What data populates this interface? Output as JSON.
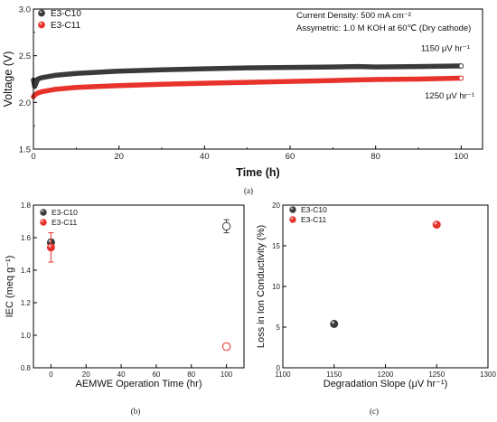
{
  "chart_data": [
    {
      "panel": "(a)",
      "type": "line",
      "xlabel": "Time (h)",
      "ylabel": "Voltage (V)",
      "xlim": [
        0,
        105
      ],
      "ylim": [
        1.5,
        3.0
      ],
      "xticks": [
        0,
        20,
        40,
        60,
        80,
        100
      ],
      "yticks": [
        1.5,
        2.0,
        2.5,
        3.0
      ],
      "legend_position": "top-left",
      "annotations": [
        "Current Density: 500 mA cm⁻²",
        "Assymetric: 1.0 M KOH at 60℃ (Dry cathode)"
      ],
      "series": [
        {
          "name": "E3-C10",
          "color": "#3a3a3a",
          "x": [
            0,
            0.3,
            1,
            2,
            5,
            10,
            20,
            30,
            40,
            50,
            60,
            70,
            76,
            80,
            90,
            100
          ],
          "values": [
            2.24,
            2.17,
            2.25,
            2.265,
            2.29,
            2.31,
            2.335,
            2.35,
            2.36,
            2.37,
            2.375,
            2.38,
            2.385,
            2.38,
            2.385,
            2.39
          ],
          "end_label": "1150 μV hr⁻¹"
        },
        {
          "name": "E3-C11",
          "color": "#e8322c",
          "x": [
            0,
            0.3,
            1,
            2,
            5,
            10,
            20,
            30,
            40,
            50,
            60,
            70,
            80,
            90,
            100
          ],
          "values": [
            2.06,
            2.08,
            2.1,
            2.115,
            2.14,
            2.16,
            2.18,
            2.195,
            2.205,
            2.215,
            2.225,
            2.235,
            2.245,
            2.25,
            2.26
          ],
          "end_label": "1250 μV hr⁻¹"
        }
      ]
    },
    {
      "panel": "(b)",
      "type": "scatter",
      "xlabel": "AEMWE Operation Time (hr)",
      "ylabel": "IEC (meq g⁻¹)",
      "xlim": [
        -10,
        110
      ],
      "ylim": [
        0.8,
        1.8
      ],
      "xticks": [
        0,
        20,
        40,
        60,
        80,
        100
      ],
      "yticks": [
        0.8,
        1.0,
        1.2,
        1.4,
        1.6,
        1.8
      ],
      "legend_position": "top-left",
      "series": [
        {
          "name": "E3-C10",
          "color": "#3a3a3a",
          "x": [
            0,
            100
          ],
          "values": [
            1.57,
            1.67
          ],
          "errors": [
            0.02,
            0.04
          ],
          "filled": [
            true,
            false
          ]
        },
        {
          "name": "E3-C11",
          "color": "#e8322c",
          "x": [
            0,
            100
          ],
          "values": [
            1.54,
            0.93
          ],
          "errors": [
            0.09,
            0.02
          ],
          "filled": [
            true,
            false
          ]
        }
      ]
    },
    {
      "panel": "(c)",
      "type": "scatter",
      "xlabel": "Degradation Slope (μV hr⁻¹)",
      "ylabel": "Loss in Ion Conductivity (%)",
      "xlim": [
        1100,
        1300
      ],
      "ylim": [
        0,
        20
      ],
      "xticks": [
        1100,
        1150,
        1200,
        1250,
        1300
      ],
      "yticks": [
        0,
        5,
        10,
        15,
        20
      ],
      "legend_position": "top-left",
      "series": [
        {
          "name": "E3-C10",
          "color": "#3a3a3a",
          "x": [
            1150
          ],
          "values": [
            5.4
          ]
        },
        {
          "name": "E3-C11",
          "color": "#e8322c",
          "x": [
            1250
          ],
          "values": [
            17.6
          ]
        }
      ]
    }
  ]
}
